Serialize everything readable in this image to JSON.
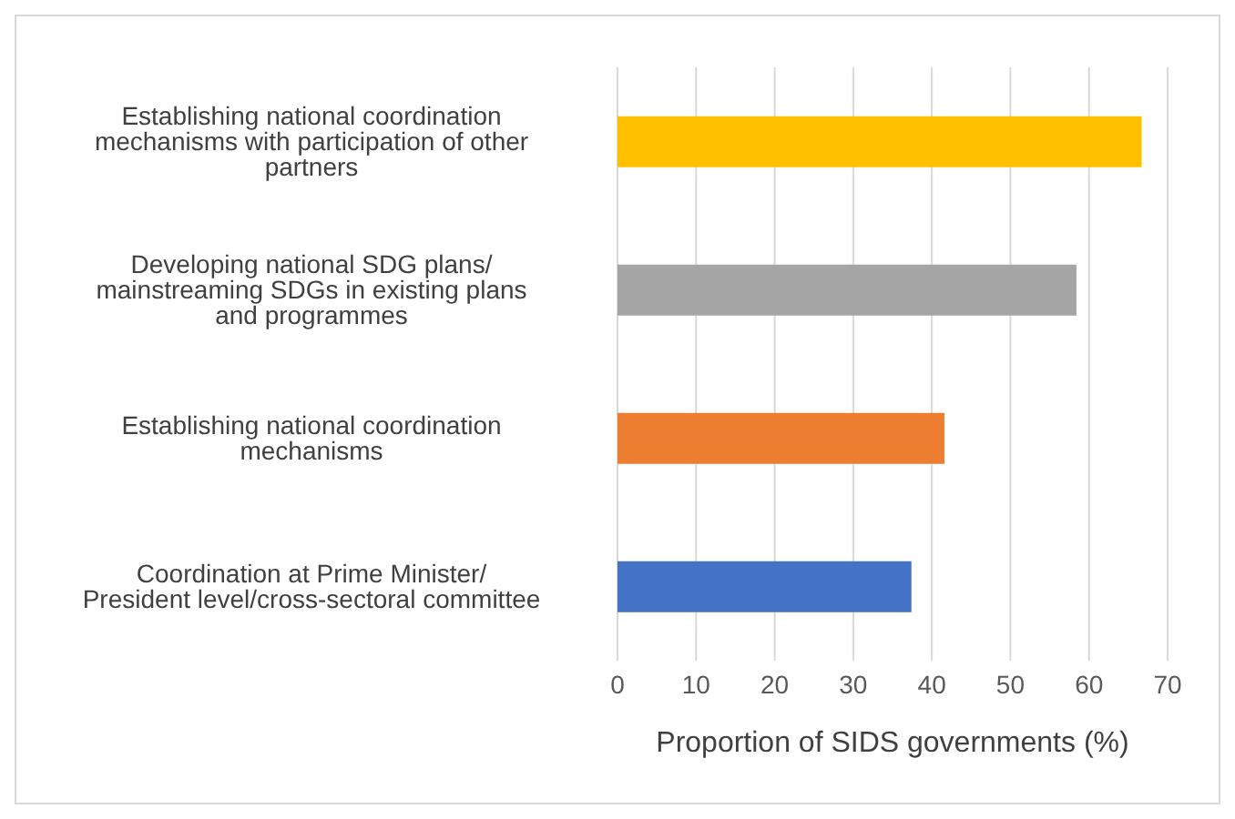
{
  "chart_data": {
    "type": "bar",
    "orientation": "horizontal",
    "xlabel": "Proportion of SIDS governments (%)",
    "categories": [
      "Establishing national coordination mechanisms with participation of other partners",
      "Developing national SDG plans/ mainstreaming SDGs in existing plans and programmes",
      "Establishing national coordination mechanisms",
      "Coordination at Prime Minister/ President level/cross-sectoral committee"
    ],
    "values": [
      66.7,
      58.4,
      41.6,
      37.4
    ],
    "colors": [
      "#ffc000",
      "#a5a5a5",
      "#ed7d31",
      "#4472c4"
    ],
    "xlim": [
      0,
      70
    ],
    "xticks": [
      0,
      10,
      20,
      30,
      40,
      50,
      60,
      70
    ],
    "grid": "x"
  }
}
